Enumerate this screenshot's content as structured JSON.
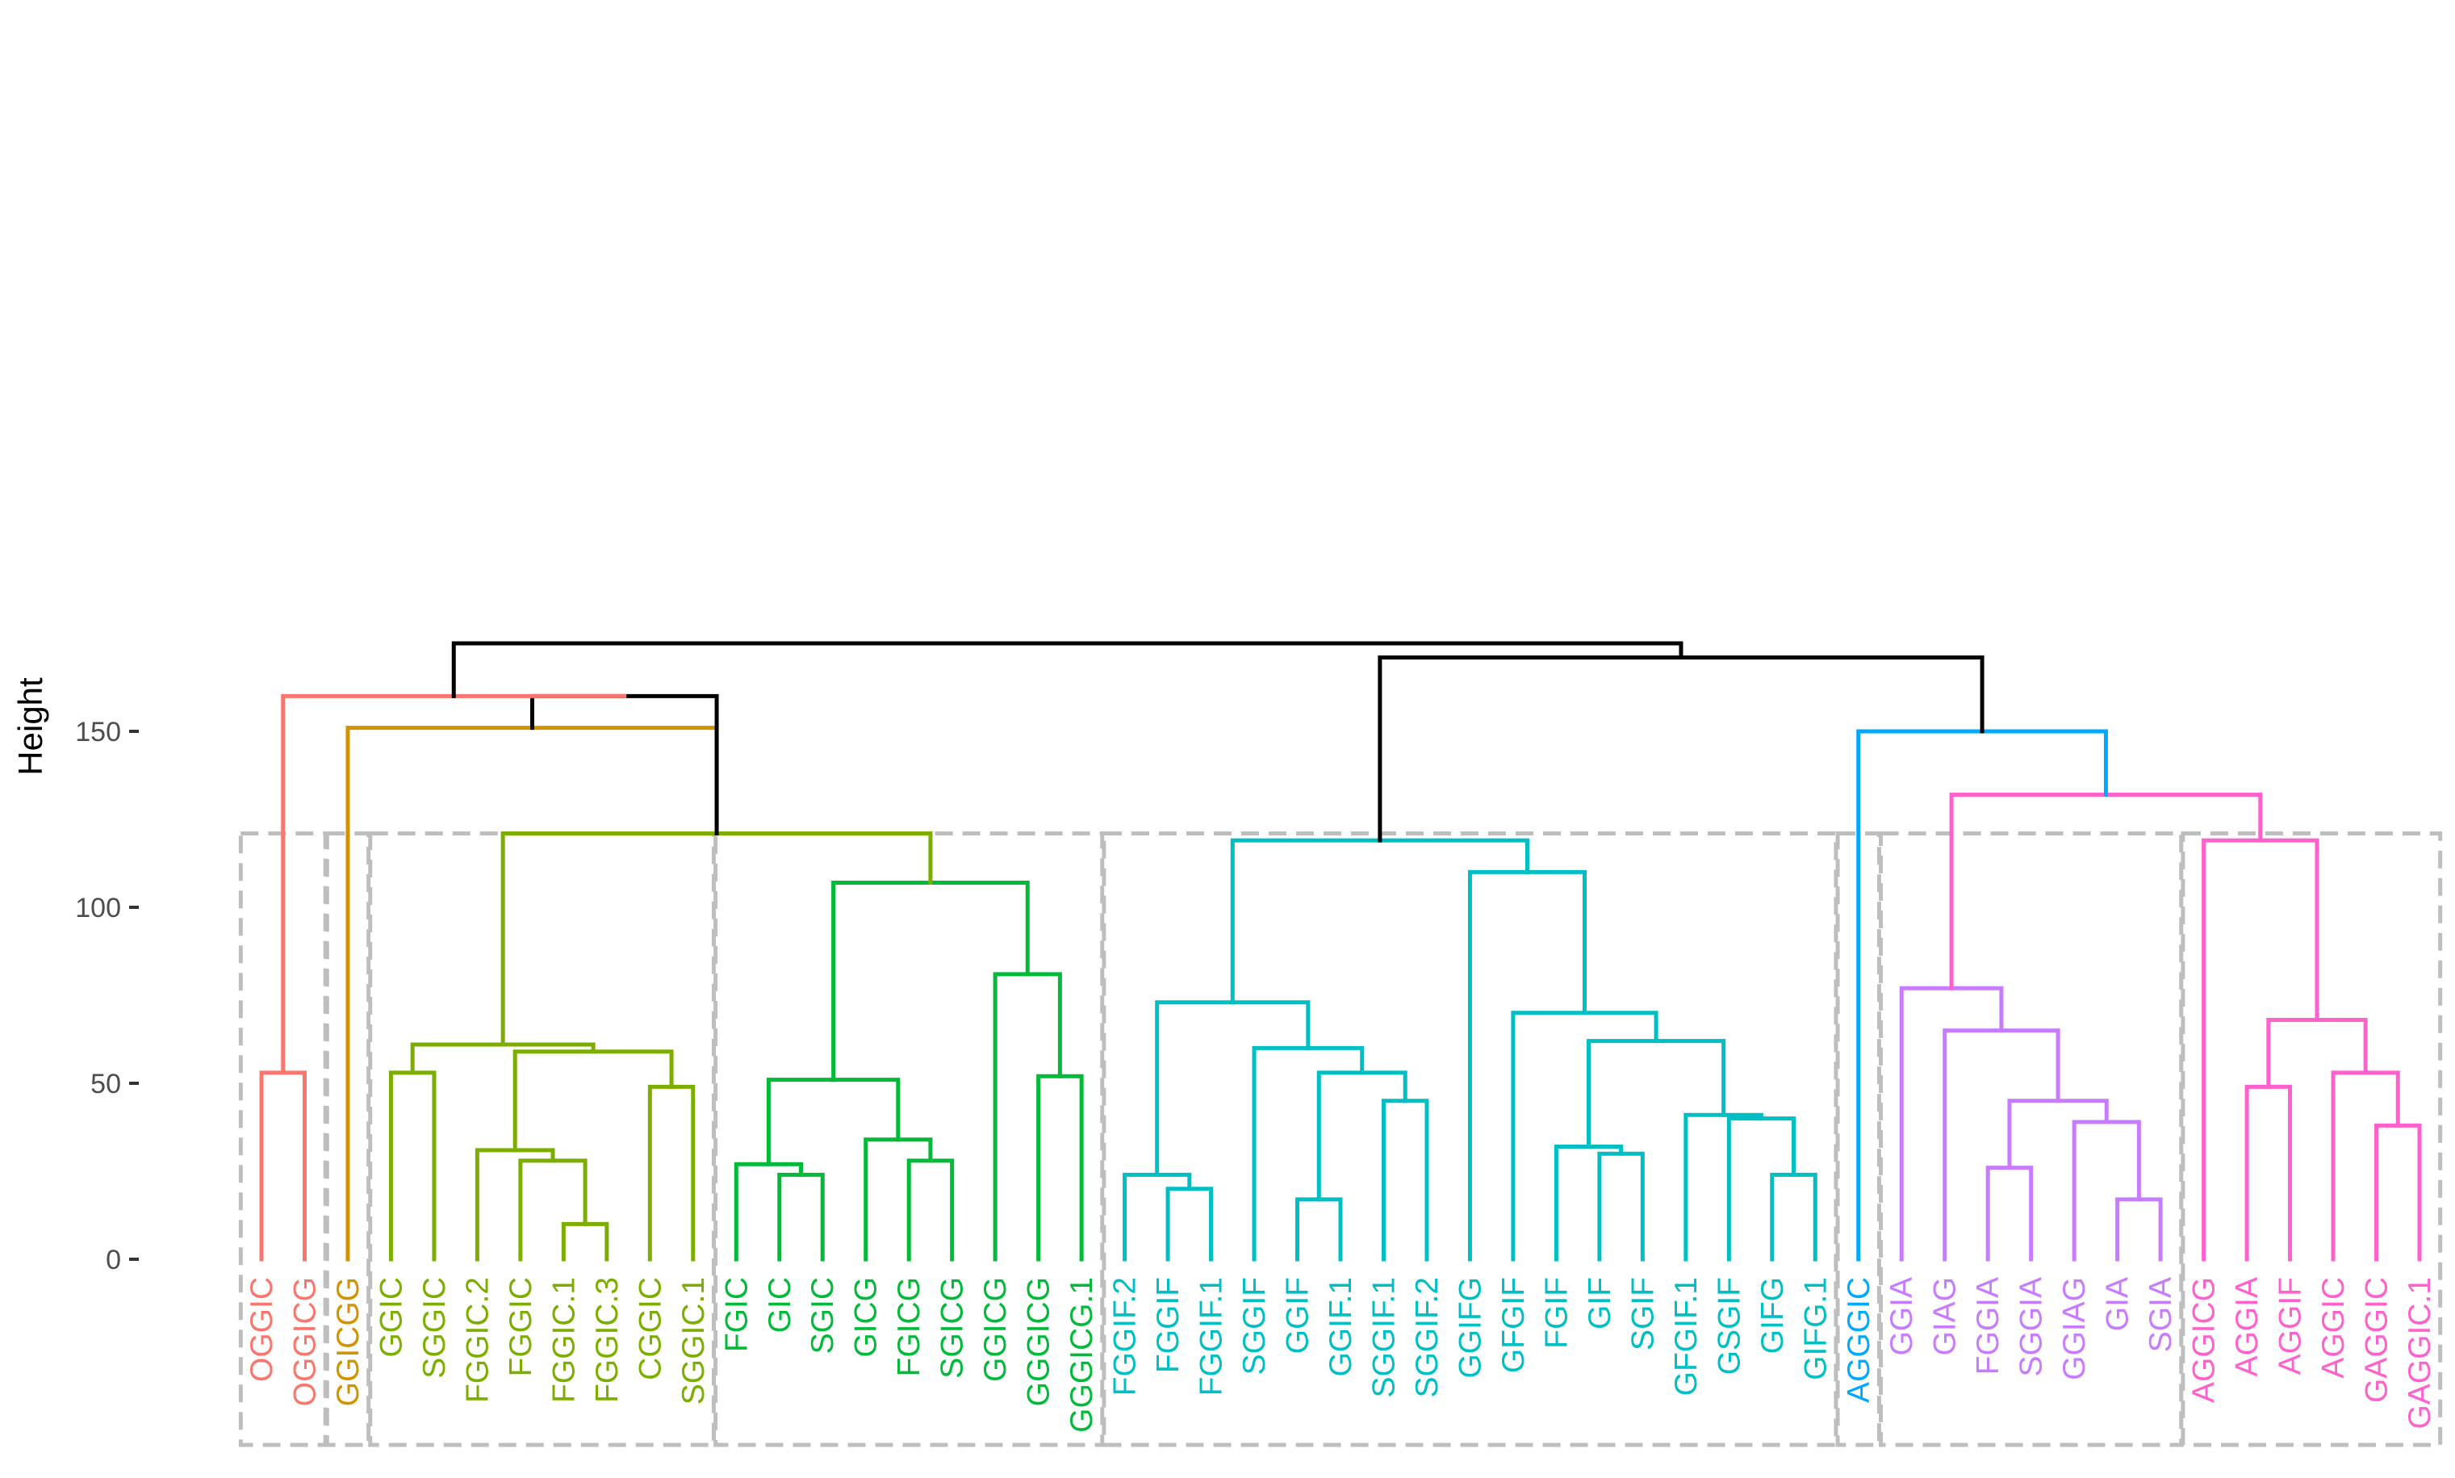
{
  "chart_data": {
    "type": "dendrogram",
    "title": "",
    "xlabel": "",
    "ylabel": "Height",
    "ylim": [
      0,
      175
    ],
    "y_ticks": [
      0,
      50,
      100,
      150
    ],
    "rect_height": 121,
    "colors": {
      "trunk": "#000000",
      "OGGIC": "#F8766D",
      "GGICGG": "#D39200",
      "GGIC_group": "#7CAE00",
      "FGIC_group": "#00BA38",
      "FGGIF_group": "#00BFC4",
      "AGGGIC": "#00A9FF",
      "GIA_group": "#C77CFF",
      "AGGIC_group": "#FF61CC",
      "rect": "#BEBEBE"
    },
    "leaves": [
      {
        "label": "OGGIC",
        "group": "OGGIC"
      },
      {
        "label": "OGGICG",
        "group": "OGGIC"
      },
      {
        "label": "GGICGG",
        "group": "GGICGG"
      },
      {
        "label": "GGIC",
        "group": "GGIC_group"
      },
      {
        "label": "SGGIC",
        "group": "GGIC_group"
      },
      {
        "label": "FGGIC.2",
        "group": "GGIC_group"
      },
      {
        "label": "FGGIC",
        "group": "GGIC_group"
      },
      {
        "label": "FGGIC.1",
        "group": "GGIC_group"
      },
      {
        "label": "FGGIC.3",
        "group": "GGIC_group"
      },
      {
        "label": "CGGIC",
        "group": "GGIC_group"
      },
      {
        "label": "SGGIC.1",
        "group": "GGIC_group"
      },
      {
        "label": "FGIC",
        "group": "FGIC_group"
      },
      {
        "label": "GIC",
        "group": "FGIC_group"
      },
      {
        "label": "SGIC",
        "group": "FGIC_group"
      },
      {
        "label": "GICG",
        "group": "FGIC_group"
      },
      {
        "label": "FGICG",
        "group": "FGIC_group"
      },
      {
        "label": "SGICG",
        "group": "FGIC_group"
      },
      {
        "label": "GGICG",
        "group": "FGIC_group"
      },
      {
        "label": "GGGICG",
        "group": "FGIC_group"
      },
      {
        "label": "GGGICG.1",
        "group": "FGIC_group"
      },
      {
        "label": "FGGIF.2",
        "group": "FGGIF_group"
      },
      {
        "label": "FGGIF",
        "group": "FGGIF_group"
      },
      {
        "label": "FGGIF.1",
        "group": "FGGIF_group"
      },
      {
        "label": "SGGIF",
        "group": "FGGIF_group"
      },
      {
        "label": "GGIF",
        "group": "FGGIF_group"
      },
      {
        "label": "GGIF.1",
        "group": "FGGIF_group"
      },
      {
        "label": "SGGIF.1",
        "group": "FGGIF_group"
      },
      {
        "label": "SGGIF.2",
        "group": "FGGIF_group"
      },
      {
        "label": "GGIFG",
        "group": "FGGIF_group"
      },
      {
        "label": "GFGIF",
        "group": "FGGIF_group"
      },
      {
        "label": "FGIF",
        "group": "FGGIF_group"
      },
      {
        "label": "GIF",
        "group": "FGGIF_group"
      },
      {
        "label": "SGIF",
        "group": "FGGIF_group"
      },
      {
        "label": "GFGIF.1",
        "group": "FGGIF_group"
      },
      {
        "label": "GSGIF",
        "group": "FGGIF_group"
      },
      {
        "label": "GIFG",
        "group": "FGGIF_group"
      },
      {
        "label": "GIFG.1",
        "group": "FGGIF_group"
      },
      {
        "label": "AGGGIC",
        "group": "AGGGIC"
      },
      {
        "label": "GGIA",
        "group": "GIA_group"
      },
      {
        "label": "GIAG",
        "group": "GIA_group"
      },
      {
        "label": "FGGIA",
        "group": "GIA_group"
      },
      {
        "label": "SGGIA",
        "group": "GIA_group"
      },
      {
        "label": "GGIAG",
        "group": "GIA_group"
      },
      {
        "label": "GIA",
        "group": "GIA_group"
      },
      {
        "label": "SGIA",
        "group": "GIA_group"
      },
      {
        "label": "AGGICG",
        "group": "AGGIC_group"
      },
      {
        "label": "AGGIA",
        "group": "AGGIC_group"
      },
      {
        "label": "AGGIF",
        "group": "AGGIC_group"
      },
      {
        "label": "AGGIC",
        "group": "AGGIC_group"
      },
      {
        "label": "GAGGIC",
        "group": "AGGIC_group"
      },
      {
        "label": "GAGGIC.1",
        "group": "AGGIC_group"
      }
    ],
    "merges": [
      {
        "left": "OGGIC",
        "right": "OGGICG",
        "height": 53,
        "group": "OGGIC"
      },
      {
        "left": "GGIC",
        "right": "SGGIC",
        "height": 53,
        "group": "GGIC_group"
      },
      {
        "left": "FGGIC.1",
        "right": "FGGIC.3",
        "height": 10,
        "group": "GGIC_group"
      },
      {
        "left": "FGGIC",
        "right": "@FGGIC.1+FGGIC.3",
        "height": 28,
        "group": "GGIC_group"
      },
      {
        "left": "FGGIC.2",
        "right": "@FGGIC+FGGIC.1+FGGIC.3",
        "height": 31,
        "group": "GGIC_group"
      },
      {
        "left": "CGGIC",
        "right": "SGGIC.1",
        "height": 49,
        "group": "GGIC_group"
      },
      {
        "left": "@FGGIC.2..FGGIC.3",
        "right": "@CGGIC+SGGIC.1",
        "height": 59,
        "group": "GGIC_group"
      },
      {
        "left": "@GGIC+SGGIC",
        "right": "@FGGIC.2..SGGIC.1",
        "height": 61,
        "group": "GGIC_group"
      },
      {
        "left": "GIC",
        "right": "SGIC",
        "height": 24,
        "group": "FGIC_group"
      },
      {
        "left": "FGIC",
        "right": "@GIC+SGIC",
        "height": 27,
        "group": "FGIC_group"
      },
      {
        "left": "FGICG",
        "right": "SGICG",
        "height": 28,
        "group": "FGIC_group"
      },
      {
        "left": "GICG",
        "right": "@FGICG+SGICG",
        "height": 34,
        "group": "FGIC_group"
      },
      {
        "left": "@FGIC..SGIC",
        "right": "@GICG..SGICG",
        "height": 51,
        "group": "FGIC_group"
      },
      {
        "left": "GGGICG",
        "right": "GGGICG.1",
        "height": 52,
        "group": "FGIC_group"
      },
      {
        "left": "GGICG",
        "right": "@GGGICG+GGGICG.1",
        "height": 81,
        "group": "FGIC_group"
      },
      {
        "left": "@FGIC..SGICG",
        "right": "@GGICG..GGGICG.1",
        "height": 107,
        "group": "FGIC_group"
      },
      {
        "left": "@GGIC..SGGIC.1",
        "right": "@FGIC..GGGICG.1",
        "height": 121,
        "group": "GGIC_group"
      },
      {
        "left": "FGGIF",
        "right": "FGGIF.1",
        "height": 20,
        "group": "FGGIF_group"
      },
      {
        "left": "FGGIF.2",
        "right": "@FGGIF+FGGIF.1",
        "height": 24,
        "group": "FGGIF_group"
      },
      {
        "left": "GGIF",
        "right": "GGIF.1",
        "height": 17,
        "group": "FGGIF_group"
      },
      {
        "left": "SGGIF.1",
        "right": "SGGIF.2",
        "height": 45,
        "group": "FGGIF_group"
      },
      {
        "left": "@GGIF+GGIF.1",
        "right": "@SGGIF.1+SGGIF.2",
        "height": 53,
        "group": "FGGIF_group"
      },
      {
        "left": "SGGIF",
        "right": "@GGIF..SGGIF.2",
        "height": 60,
        "group": "FGGIF_group"
      },
      {
        "left": "@FGGIF.2..FGGIF.1",
        "right": "@SGGIF..SGGIF.2",
        "height": 73,
        "group": "FGGIF_group"
      },
      {
        "left": "GIF",
        "right": "SGIF",
        "height": 30,
        "group": "FGGIF_group"
      },
      {
        "left": "FGIF",
        "right": "@GIF+SGIF",
        "height": 32,
        "group": "FGGIF_group"
      },
      {
        "left": "GIFG",
        "right": "GIFG.1",
        "height": 24,
        "group": "FGGIF_group"
      },
      {
        "left": "GSGIF",
        "right": "@GIFG+GIFG.1",
        "height": 40,
        "group": "FGGIF_group"
      },
      {
        "left": "GFGIF.1",
        "right": "@GSGIF..GIFG.1",
        "height": 41,
        "group": "FGGIF_group"
      },
      {
        "left": "@FGIF..SGIF",
        "right": "@GFGIF.1..GIFG.1",
        "height": 62,
        "group": "FGGIF_group"
      },
      {
        "left": "GFGIF",
        "right": "@FGIF..GIFG.1",
        "height": 70,
        "group": "FGGIF_group"
      },
      {
        "left": "GGIFG",
        "right": "@GFGIF..GIFG.1",
        "height": 110,
        "group": "FGGIF_group"
      },
      {
        "left": "@FGGIF.2..SGGIF.2",
        "right": "@GGIFG..GIFG.1",
        "height": 119,
        "group": "FGGIF_group"
      },
      {
        "left": "GIA",
        "right": "SGIA",
        "height": 17,
        "group": "GIA_group"
      },
      {
        "left": "GGIAG",
        "right": "@GIA+SGIA",
        "height": 39,
        "group": "GIA_group"
      },
      {
        "left": "FGGIA",
        "right": "SGGIA",
        "height": 26,
        "group": "GIA_group"
      },
      {
        "left": "@FGGIA+SGGIA",
        "right": "@GGIAG..SGIA",
        "height": 45,
        "group": "GIA_group"
      },
      {
        "left": "GIAG",
        "right": "@FGGIA..SGIA",
        "height": 65,
        "group": "GIA_group"
      },
      {
        "left": "GGIA",
        "right": "@GIAG..SGIA",
        "height": 77,
        "group": "GIA_group"
      },
      {
        "left": "AGGIA",
        "right": "AGGIF",
        "height": 49,
        "group": "AGGIC_group"
      },
      {
        "left": "GAGGIC",
        "right": "GAGGIC.1",
        "height": 38,
        "group": "AGGIC_group"
      },
      {
        "left": "AGGIC",
        "right": "@GAGGIC+GAGGIC.1",
        "height": 53,
        "group": "AGGIC_group"
      },
      {
        "left": "@AGGIA+AGGIF",
        "right": "@AGGIC..GAGGIC.1",
        "height": 68,
        "group": "AGGIC_group"
      },
      {
        "left": "AGGICG",
        "right": "@AGGIA..GAGGIC.1",
        "height": 119,
        "group": "AGGIC_group"
      },
      {
        "left": "@GGIA..SGIA",
        "right": "@AGGICG..GAGGIC.1",
        "height": 132,
        "group": "AGGIC_group"
      },
      {
        "left": "AGGGIC",
        "right": "@GGIA..GAGGIC.1",
        "height": 150,
        "group": "AGGGIC"
      },
      {
        "left": "@FGGIF.2..GIFG.1",
        "right": "@AGGGIC..GAGGIC.1",
        "height": 171,
        "group": "trunk"
      },
      {
        "left": "GGICGG",
        "right": "@GGIC..GGGICG.1",
        "height": 151,
        "group": "GGICGG"
      },
      {
        "left": "@GGICGG..GGGICG.1",
        "right": "@GGIC..GGGICG.1",
        "height": 160,
        "group": "trunk"
      },
      {
        "left": "@OGGIC+OGGICG",
        "right": "@GGICGG..GGGICG.1",
        "height": 160,
        "group": "OGGIC"
      },
      {
        "left": "@OGGIC..GGGICG.1",
        "right": "@FGGIF.2..GAGGIC.1",
        "height": 175,
        "group": "trunk"
      }
    ],
    "rect_groups": [
      {
        "from": "OGGIC",
        "to": "OGGICG"
      },
      {
        "from": "GGICGG",
        "to": "GGICGG"
      },
      {
        "from": "GGIC",
        "to": "SGGIC.1"
      },
      {
        "from": "FGIC",
        "to": "GGGICG.1"
      },
      {
        "from": "FGGIF.2",
        "to": "GIFG.1"
      },
      {
        "from": "AGGGIC",
        "to": "AGGGIC"
      },
      {
        "from": "GGIA",
        "to": "SGIA"
      },
      {
        "from": "AGGICG",
        "to": "GAGGIC.1"
      }
    ]
  }
}
